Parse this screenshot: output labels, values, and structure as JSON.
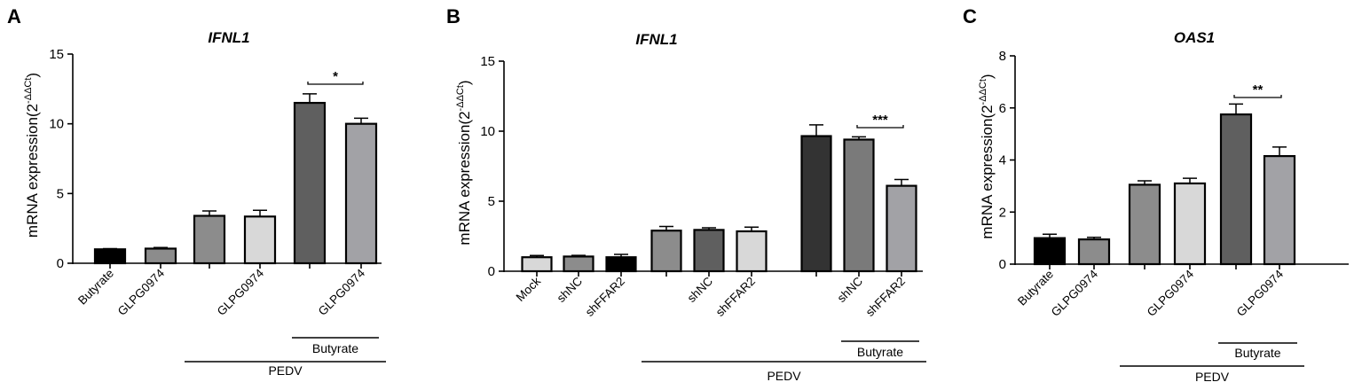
{
  "chart_data": [
    {
      "panel": "A",
      "type": "bar",
      "title": "IFNL1",
      "ylabel": "mRNA expression(2",
      "ylabel_sup": "-ΔΔCt",
      "ylabel_close": ")",
      "ylim": [
        0,
        15
      ],
      "yticks": [
        "0",
        "5",
        "10",
        "15"
      ],
      "categories": [
        "Butyrate",
        "GLPG0974",
        "",
        "GLPG0974",
        "",
        "GLPG0974"
      ],
      "values": [
        1.0,
        1.05,
        3.4,
        3.35,
        11.5,
        10.0
      ],
      "errors": [
        0.05,
        0.08,
        0.35,
        0.45,
        0.65,
        0.4
      ],
      "colors": [
        "#000000",
        "#8c8c8c",
        "#8c8c8c",
        "#d8d8d8",
        "#5f5f5f",
        "#a2a2a6"
      ],
      "significance": [
        {
          "label": "*",
          "from": 4,
          "to": 5
        }
      ],
      "groups": [
        {
          "label": "Butyrate",
          "from": 4,
          "to": 5
        },
        {
          "label": "PEDV",
          "from": 2,
          "to": 5
        }
      ]
    },
    {
      "panel": "B",
      "type": "bar",
      "title": "IFNL1",
      "ylabel": "mRNA expression(2",
      "ylabel_sup": "-ΔΔCt",
      "ylabel_close": ")",
      "ylim": [
        0,
        15
      ],
      "yticks": [
        "0",
        "5",
        "10",
        "15"
      ],
      "categories": [
        "Mock",
        "shNC",
        "shFFAR2",
        "",
        "shNC",
        "shFFAR2",
        "",
        "shNC",
        "shFFAR2"
      ],
      "values": [
        1.0,
        1.05,
        1.0,
        2.9,
        2.95,
        2.85,
        9.65,
        9.4,
        6.1
      ],
      "errors": [
        0.12,
        0.08,
        0.2,
        0.3,
        0.15,
        0.3,
        0.8,
        0.2,
        0.45
      ],
      "colors": [
        "#d8d8d8",
        "#8c8c8c",
        "#000000",
        "#8c8c8c",
        "#5f5f5f",
        "#d8d8d8",
        "#333333",
        "#7a7a7a",
        "#a2a2a6"
      ],
      "significance": [
        {
          "label": "***",
          "from": 7,
          "to": 8
        }
      ],
      "groups": [
        {
          "label": "Butyrate",
          "from": 7,
          "to": 8
        },
        {
          "label": "PEDV",
          "from": 3,
          "to": 8
        }
      ]
    },
    {
      "panel": "C",
      "type": "bar",
      "title": "OAS1",
      "ylabel": "mRNA expression(2",
      "ylabel_sup": "-ΔΔCt",
      "ylabel_close": ")",
      "ylim": [
        0,
        8
      ],
      "yticks": [
        "0",
        "2",
        "4",
        "6",
        "8"
      ],
      "categories": [
        "Butyrate",
        "GLPG0974",
        "",
        "GLPG0974",
        "",
        "GLPG0974"
      ],
      "values": [
        1.0,
        0.95,
        3.05,
        3.1,
        5.75,
        4.15
      ],
      "errors": [
        0.15,
        0.08,
        0.15,
        0.2,
        0.4,
        0.35
      ],
      "colors": [
        "#000000",
        "#8c8c8c",
        "#8c8c8c",
        "#d8d8d8",
        "#5f5f5f",
        "#a2a2a6"
      ],
      "significance": [
        {
          "label": "**",
          "from": 4,
          "to": 5
        }
      ],
      "groups": [
        {
          "label": "Butyrate",
          "from": 4,
          "to": 5
        },
        {
          "label": "PEDV",
          "from": 2,
          "to": 5
        }
      ]
    }
  ]
}
